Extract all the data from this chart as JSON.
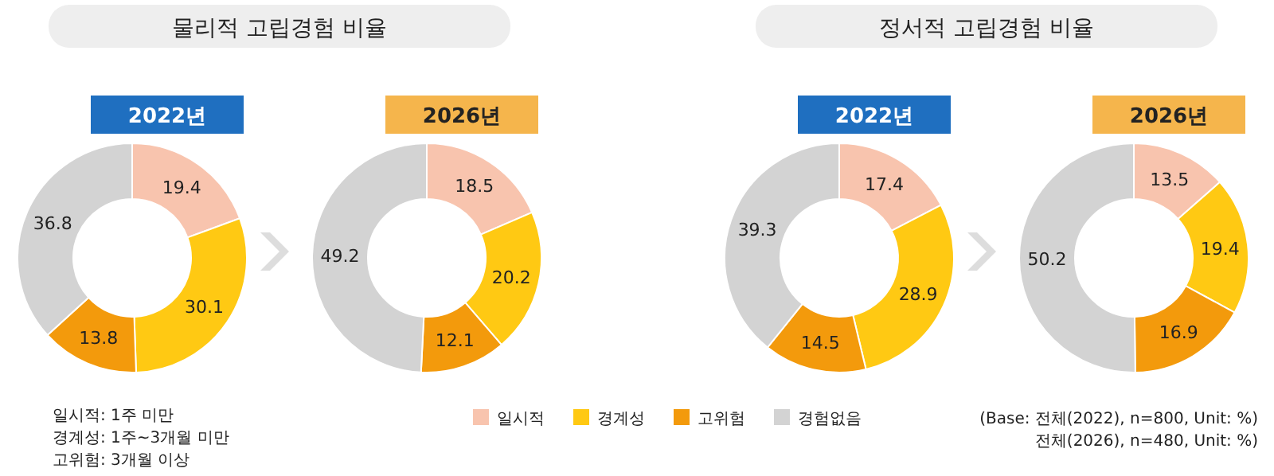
{
  "chart_data": [
    {
      "type": "donut",
      "title": "물리적 고립경험 비율",
      "subtitle": "2022년",
      "categories": [
        null,
        null,
        null,
        null
      ],
      "values": [
        19.4,
        30.1,
        13.8,
        36.8
      ],
      "colors": [
        "#f8c4ae",
        "#ffc913",
        "#f39a0c",
        "#d3d3d3"
      ],
      "data_labels": true,
      "annotations": [
        "일시적: 1주 미만",
        "경계성: 1주~3개월 미만",
        "고위험: 3개월 이상"
      ]
    },
    {
      "type": "donut",
      "subtitle": "2026년",
      "categories": [
        "일시적",
        "경계성",
        "고위험",
        "경험없음"
      ],
      "values": [
        18.5,
        20.2,
        12.1,
        49.2
      ],
      "colors": [
        "#f8c4ae",
        "#ffc913",
        "#f39a0c",
        "#d3d3d3"
      ],
      "data_labels": true,
      "legend": "bottom"
    },
    {
      "type": "donut",
      "title": "정서적 고립경험 비율",
      "subtitle": "2022년",
      "categories": [
        null,
        null,
        null,
        null
      ],
      "values": [
        17.4,
        28.9,
        14.5,
        39.3
      ],
      "colors": [
        "#f8c4ae",
        "#ffc913",
        "#f39a0c",
        "#d3d3d3"
      ],
      "data_labels": true
    },
    {
      "type": "donut",
      "subtitle": "2026년",
      "categories": [
        null,
        null,
        null,
        null
      ],
      "values": [
        13.5,
        19.4,
        16.9,
        50.2
      ],
      "colors": [
        "#f8c4ae",
        "#ffc913",
        "#f39a0c",
        "#d3d3d3"
      ],
      "data_labels": true,
      "annotations": [
        "(Base: 전체(2022), n=800, Unit: %)",
        "전체(2026), n=480, Unit: %)"
      ]
    }
  ]
}
